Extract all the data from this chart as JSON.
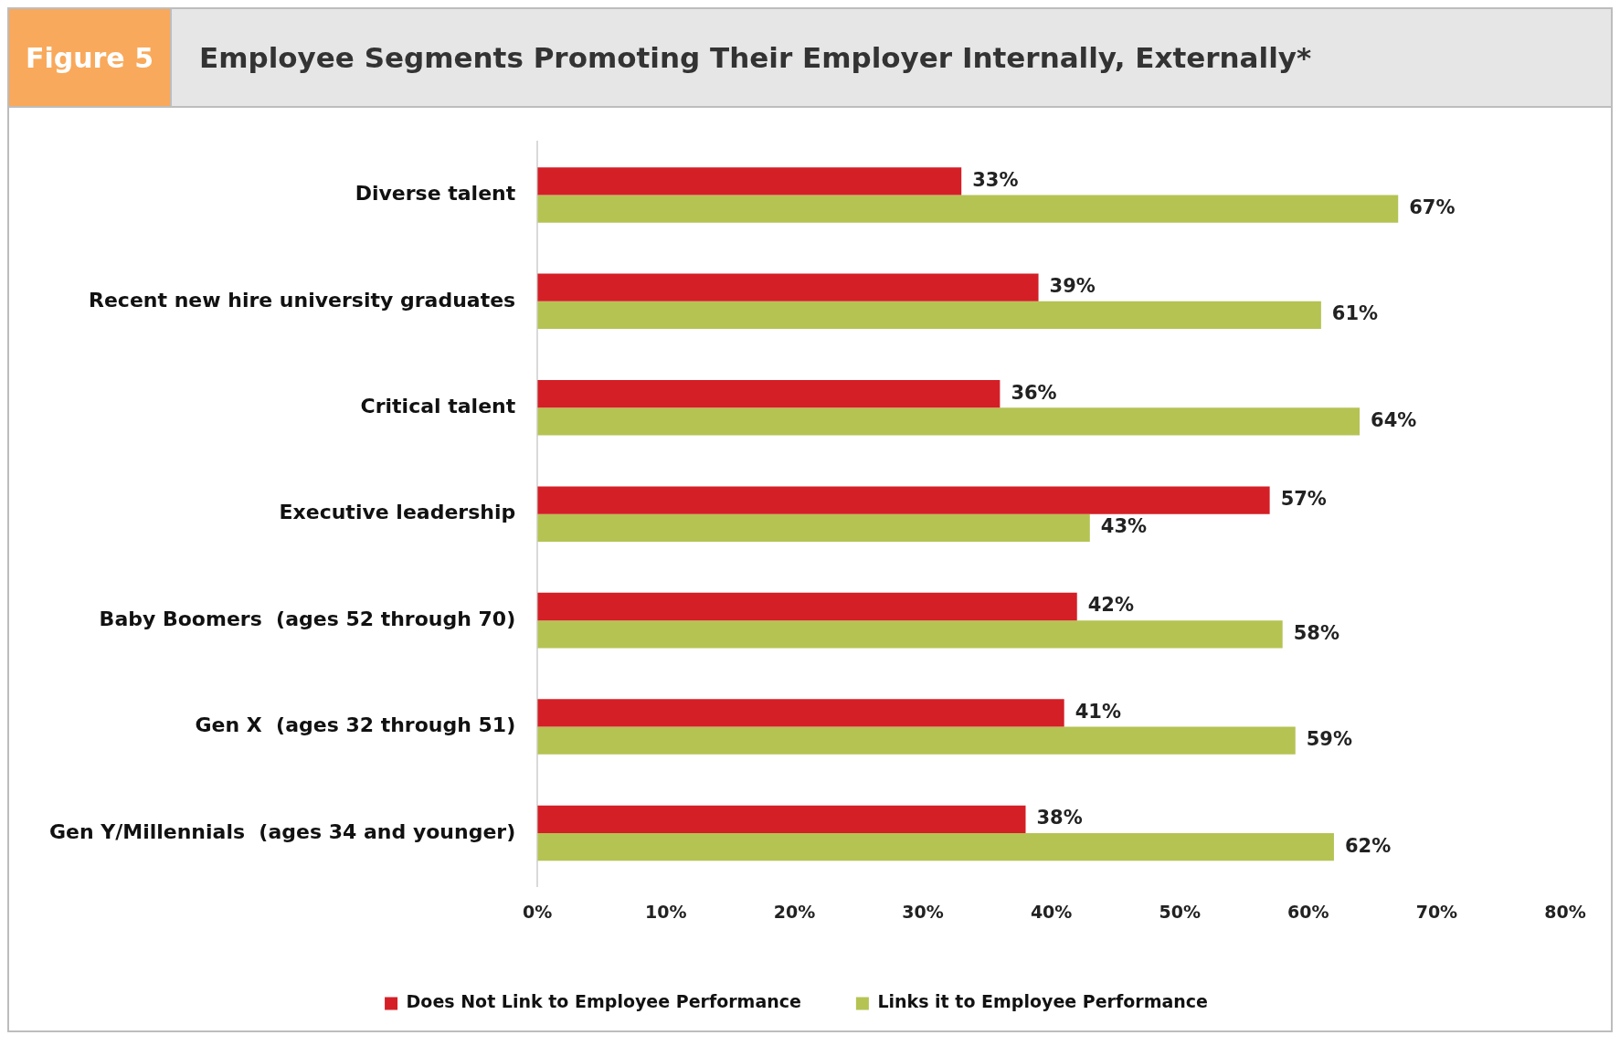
{
  "chart_data": {
    "type": "bar",
    "orientation": "horizontal",
    "title": "Employee Segments Promoting Their Employer Internally, Externally*",
    "annotations": [
      "Figure 5"
    ],
    "categories": [
      "Diverse talent",
      "Recent new hire university graduates",
      "Critical talent",
      "Executive leadership",
      "Baby Boomers  (ages 52 through 70)",
      "Gen X  (ages 32 through 51)",
      "Gen Y/Millennials  (ages 34 and younger)"
    ],
    "series": [
      {
        "name": "Does Not Link to Employee Performance",
        "color": "#d41f26",
        "values": [
          33,
          39,
          36,
          57,
          42,
          41,
          38
        ],
        "value_labels": [
          "33%",
          "39%",
          "36%",
          "57%",
          "42%",
          "41%",
          "38%"
        ]
      },
      {
        "name": "Links it to Employee Performance",
        "color": "#b5c353",
        "values": [
          67,
          61,
          64,
          43,
          58,
          59,
          62
        ],
        "value_labels": [
          "67%",
          "61%",
          "64%",
          "43%",
          "58%",
          "59%",
          "62%"
        ]
      }
    ],
    "xlim": [
      0,
      80
    ],
    "xticks": [
      {
        "value": 0,
        "label": "0%"
      },
      {
        "value": 10,
        "label": "10%"
      },
      {
        "value": 20,
        "label": "20%"
      },
      {
        "value": 30,
        "label": "30%"
      },
      {
        "value": 40,
        "label": "40%"
      },
      {
        "value": 50,
        "label": "50%"
      },
      {
        "value": 60,
        "label": "60%"
      },
      {
        "value": 70,
        "label": "70%"
      },
      {
        "value": 80,
        "label": "80%"
      }
    ],
    "grid": false,
    "legend": "bottom"
  }
}
